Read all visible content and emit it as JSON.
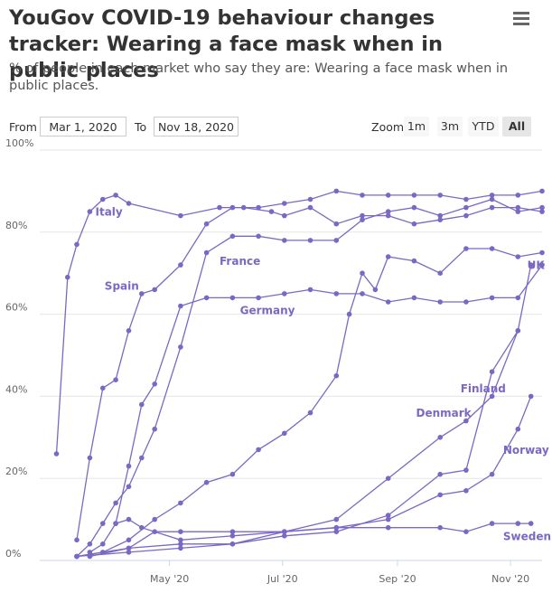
{
  "header": {
    "title": "YouGov COVID-19 behaviour changes tracker: Wearing a face mask when in public places",
    "subtitle": "% of people in each market who say they are: Wearing a face mask when in public places."
  },
  "range": {
    "from_label": "From",
    "from_value": "Mar 1, 2020",
    "to_label": "To",
    "to_value": "Nov 18, 2020"
  },
  "zoom": {
    "label": "Zoom",
    "buttons": [
      "1m",
      "3m",
      "YTD",
      "All"
    ],
    "active": "All"
  },
  "icons": {
    "menu": "hamburger-menu-icon"
  },
  "colors": {
    "series": "#7b68c4",
    "grid": "#e6e6e6",
    "axis": "#ccd6eb"
  },
  "chart_data": {
    "type": "line",
    "title": "YouGov COVID-19 behaviour changes tracker: Wearing a face mask when in public places",
    "ylabel": "",
    "ylim": [
      0,
      100
    ],
    "yticks": [
      "0%",
      "20%",
      "40%",
      "60%",
      "80%",
      "100%"
    ],
    "xticks": [
      {
        "label": "May '20",
        "date": "2020-05-01"
      },
      {
        "label": "Jul '20",
        "date": "2020-07-01"
      },
      {
        "label": "Sep '20",
        "date": "2020-09-01"
      },
      {
        "label": "Nov '20",
        "date": "2020-11-01"
      }
    ],
    "xlim": [
      "2020-02-21",
      "2020-11-18"
    ],
    "grid": true,
    "series": [
      {
        "name": "Italy",
        "points": [
          [
            "2020-03-01",
            26
          ],
          [
            "2020-03-07",
            69
          ],
          [
            "2020-03-12",
            77
          ],
          [
            "2020-03-19",
            85
          ],
          [
            "2020-03-26",
            88
          ],
          [
            "2020-04-02",
            89
          ],
          [
            "2020-04-09",
            87
          ],
          [
            "2020-05-07",
            84
          ],
          [
            "2020-05-28",
            86
          ],
          [
            "2020-06-10",
            86
          ],
          [
            "2020-06-25",
            85
          ],
          [
            "2020-07-02",
            84
          ],
          [
            "2020-07-16",
            86
          ],
          [
            "2020-07-30",
            82
          ],
          [
            "2020-08-13",
            84
          ],
          [
            "2020-08-27",
            84
          ],
          [
            "2020-09-10",
            82
          ],
          [
            "2020-09-24",
            83
          ],
          [
            "2020-10-08",
            84
          ],
          [
            "2020-10-22",
            86
          ],
          [
            "2020-11-05",
            86
          ],
          [
            "2020-11-18",
            85
          ]
        ]
      },
      {
        "name": "Spain",
        "points": [
          [
            "2020-03-12",
            5
          ],
          [
            "2020-03-19",
            25
          ],
          [
            "2020-03-26",
            42
          ],
          [
            "2020-04-02",
            44
          ],
          [
            "2020-04-09",
            56
          ],
          [
            "2020-04-16",
            65
          ],
          [
            "2020-04-23",
            66
          ],
          [
            "2020-05-07",
            72
          ],
          [
            "2020-05-21",
            82
          ],
          [
            "2020-06-04",
            86
          ],
          [
            "2020-06-18",
            86
          ],
          [
            "2020-07-02",
            87
          ],
          [
            "2020-07-16",
            88
          ],
          [
            "2020-07-30",
            90
          ],
          [
            "2020-08-13",
            89
          ],
          [
            "2020-08-27",
            89
          ],
          [
            "2020-09-10",
            89
          ],
          [
            "2020-09-24",
            89
          ],
          [
            "2020-10-08",
            88
          ],
          [
            "2020-10-22",
            89
          ],
          [
            "2020-11-05",
            89
          ],
          [
            "2020-11-18",
            90
          ]
        ]
      },
      {
        "name": "France",
        "points": [
          [
            "2020-03-12",
            1
          ],
          [
            "2020-03-19",
            4
          ],
          [
            "2020-03-26",
            9
          ],
          [
            "2020-04-02",
            14
          ],
          [
            "2020-04-09",
            18
          ],
          [
            "2020-04-16",
            25
          ],
          [
            "2020-04-23",
            32
          ],
          [
            "2020-05-07",
            52
          ],
          [
            "2020-05-21",
            75
          ],
          [
            "2020-06-04",
            79
          ],
          [
            "2020-06-18",
            79
          ],
          [
            "2020-07-02",
            78
          ],
          [
            "2020-07-16",
            78
          ],
          [
            "2020-07-30",
            78
          ],
          [
            "2020-08-13",
            83
          ],
          [
            "2020-08-27",
            85
          ],
          [
            "2020-09-10",
            86
          ],
          [
            "2020-09-24",
            84
          ],
          [
            "2020-10-08",
            86
          ],
          [
            "2020-10-22",
            88
          ],
          [
            "2020-11-05",
            85
          ],
          [
            "2020-11-18",
            86
          ]
        ]
      },
      {
        "name": "Germany",
        "points": [
          [
            "2020-03-19",
            2
          ],
          [
            "2020-03-26",
            4
          ],
          [
            "2020-04-02",
            9
          ],
          [
            "2020-04-09",
            23
          ],
          [
            "2020-04-16",
            38
          ],
          [
            "2020-04-23",
            43
          ],
          [
            "2020-05-07",
            62
          ],
          [
            "2020-05-21",
            64
          ],
          [
            "2020-06-04",
            64
          ],
          [
            "2020-06-18",
            64
          ],
          [
            "2020-07-02",
            65
          ],
          [
            "2020-07-16",
            66
          ],
          [
            "2020-07-30",
            65
          ],
          [
            "2020-08-13",
            65
          ],
          [
            "2020-08-27",
            63
          ],
          [
            "2020-09-10",
            64
          ],
          [
            "2020-09-24",
            63
          ],
          [
            "2020-10-08",
            63
          ],
          [
            "2020-10-22",
            64
          ],
          [
            "2020-11-05",
            64
          ],
          [
            "2020-11-18",
            72
          ]
        ]
      },
      {
        "name": "UK",
        "points": [
          [
            "2020-03-12",
            1
          ],
          [
            "2020-03-26",
            2
          ],
          [
            "2020-04-09",
            5
          ],
          [
            "2020-04-23",
            10
          ],
          [
            "2020-05-07",
            14
          ],
          [
            "2020-05-21",
            19
          ],
          [
            "2020-06-04",
            21
          ],
          [
            "2020-06-18",
            27
          ],
          [
            "2020-07-02",
            31
          ],
          [
            "2020-07-16",
            36
          ],
          [
            "2020-07-30",
            45
          ],
          [
            "2020-08-06",
            60
          ],
          [
            "2020-08-13",
            70
          ],
          [
            "2020-08-20",
            66
          ],
          [
            "2020-08-27",
            74
          ],
          [
            "2020-09-10",
            73
          ],
          [
            "2020-09-24",
            70
          ],
          [
            "2020-10-08",
            76
          ],
          [
            "2020-10-22",
            76
          ],
          [
            "2020-11-05",
            74
          ],
          [
            "2020-11-18",
            75
          ]
        ]
      },
      {
        "name": "Finland",
        "points": [
          [
            "2020-03-12",
            1
          ],
          [
            "2020-04-09",
            2
          ],
          [
            "2020-05-07",
            3
          ],
          [
            "2020-06-04",
            4
          ],
          [
            "2020-07-02",
            6
          ],
          [
            "2020-07-30",
            7
          ],
          [
            "2020-08-27",
            11
          ],
          [
            "2020-09-24",
            21
          ],
          [
            "2020-10-08",
            22
          ],
          [
            "2020-10-22",
            46
          ],
          [
            "2020-11-05",
            56
          ],
          [
            "2020-11-12",
            72
          ]
        ]
      },
      {
        "name": "Denmark",
        "points": [
          [
            "2020-04-02",
            9
          ],
          [
            "2020-04-09",
            10
          ],
          [
            "2020-04-16",
            8
          ],
          [
            "2020-05-07",
            5
          ],
          [
            "2020-06-04",
            6
          ],
          [
            "2020-07-02",
            7
          ],
          [
            "2020-07-30",
            10
          ],
          [
            "2020-08-27",
            20
          ],
          [
            "2020-09-24",
            30
          ],
          [
            "2020-10-08",
            34
          ],
          [
            "2020-10-22",
            40
          ],
          [
            "2020-11-05",
            56
          ]
        ]
      },
      {
        "name": "Norway",
        "points": [
          [
            "2020-03-19",
            1
          ],
          [
            "2020-04-09",
            3
          ],
          [
            "2020-05-07",
            4
          ],
          [
            "2020-06-04",
            4
          ],
          [
            "2020-07-02",
            7
          ],
          [
            "2020-07-30",
            8
          ],
          [
            "2020-08-27",
            10
          ],
          [
            "2020-09-24",
            16
          ],
          [
            "2020-10-08",
            17
          ],
          [
            "2020-10-22",
            21
          ],
          [
            "2020-11-05",
            32
          ],
          [
            "2020-11-12",
            40
          ]
        ]
      },
      {
        "name": "Sweden",
        "points": [
          [
            "2020-03-12",
            1
          ],
          [
            "2020-04-09",
            3
          ],
          [
            "2020-04-23",
            7
          ],
          [
            "2020-05-07",
            7
          ],
          [
            "2020-06-04",
            7
          ],
          [
            "2020-07-02",
            7
          ],
          [
            "2020-07-30",
            8
          ],
          [
            "2020-08-27",
            8
          ],
          [
            "2020-09-24",
            8
          ],
          [
            "2020-10-08",
            7
          ],
          [
            "2020-10-22",
            9
          ],
          [
            "2020-11-05",
            9
          ],
          [
            "2020-11-12",
            9
          ]
        ]
      }
    ],
    "labels": [
      {
        "series": "Italy",
        "text": "Italy",
        "anchor": [
          "2020-03-22",
          84
        ]
      },
      {
        "series": "Spain",
        "text": "Spain",
        "anchor": [
          "2020-03-27",
          66
        ]
      },
      {
        "series": "France",
        "text": "France",
        "anchor": [
          "2020-05-28",
          72
        ]
      },
      {
        "series": "Germany",
        "text": "Germany",
        "anchor": [
          "2020-06-08",
          60
        ]
      },
      {
        "series": "UK",
        "text": "UK",
        "anchor": [
          "2020-11-10",
          71
        ]
      },
      {
        "series": "Finland",
        "text": "Finland",
        "anchor": [
          "2020-10-05",
          41
        ]
      },
      {
        "series": "Denmark",
        "text": "Denmark",
        "anchor": [
          "2020-09-11",
          35
        ]
      },
      {
        "series": "Norway",
        "text": "Norway",
        "anchor": [
          "2020-10-28",
          26
        ]
      },
      {
        "series": "Sweden",
        "text": "Sweden",
        "anchor": [
          "2020-10-28",
          5
        ]
      }
    ]
  }
}
